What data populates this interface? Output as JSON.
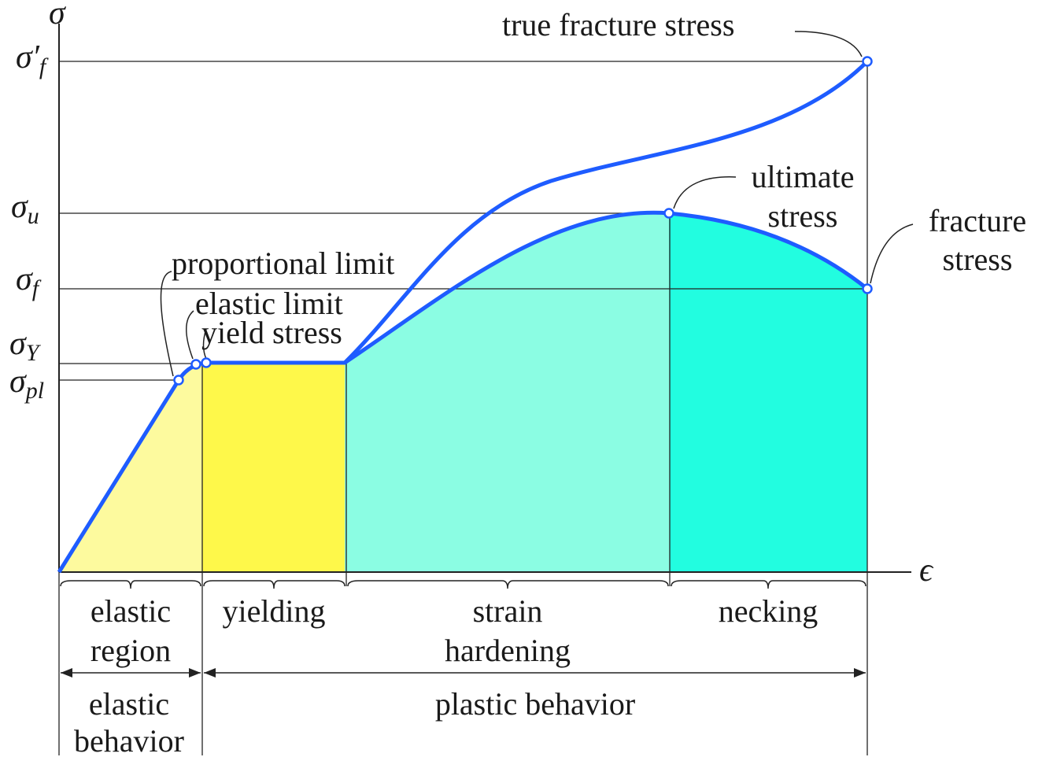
{
  "axes": {
    "y_label": "σ",
    "x_label": "ϵ"
  },
  "levels": [
    {
      "symbol": "σ′",
      "sub": "f"
    },
    {
      "symbol": "σ",
      "sub": "u"
    },
    {
      "symbol": "σ",
      "sub": "f"
    },
    {
      "symbol": "σ",
      "sub": "Y"
    },
    {
      "symbol": "σ",
      "sub": "pl"
    }
  ],
  "annotations": {
    "true_fracture_stress": "true fracture stress",
    "ultimate_stress": [
      "ultimate",
      "stress"
    ],
    "fracture_stress": [
      "fracture",
      "stress"
    ],
    "proportional_limit": "proportional limit",
    "elastic_limit": "elastic limit",
    "yield_stress": "yield stress"
  },
  "regions": [
    [
      "elastic",
      "region"
    ],
    [
      "yielding"
    ],
    [
      "strain",
      "hardening"
    ],
    [
      "necking"
    ]
  ],
  "behaviors": {
    "elastic": [
      "elastic",
      "behavior"
    ],
    "plastic": "plastic behavior"
  }
}
